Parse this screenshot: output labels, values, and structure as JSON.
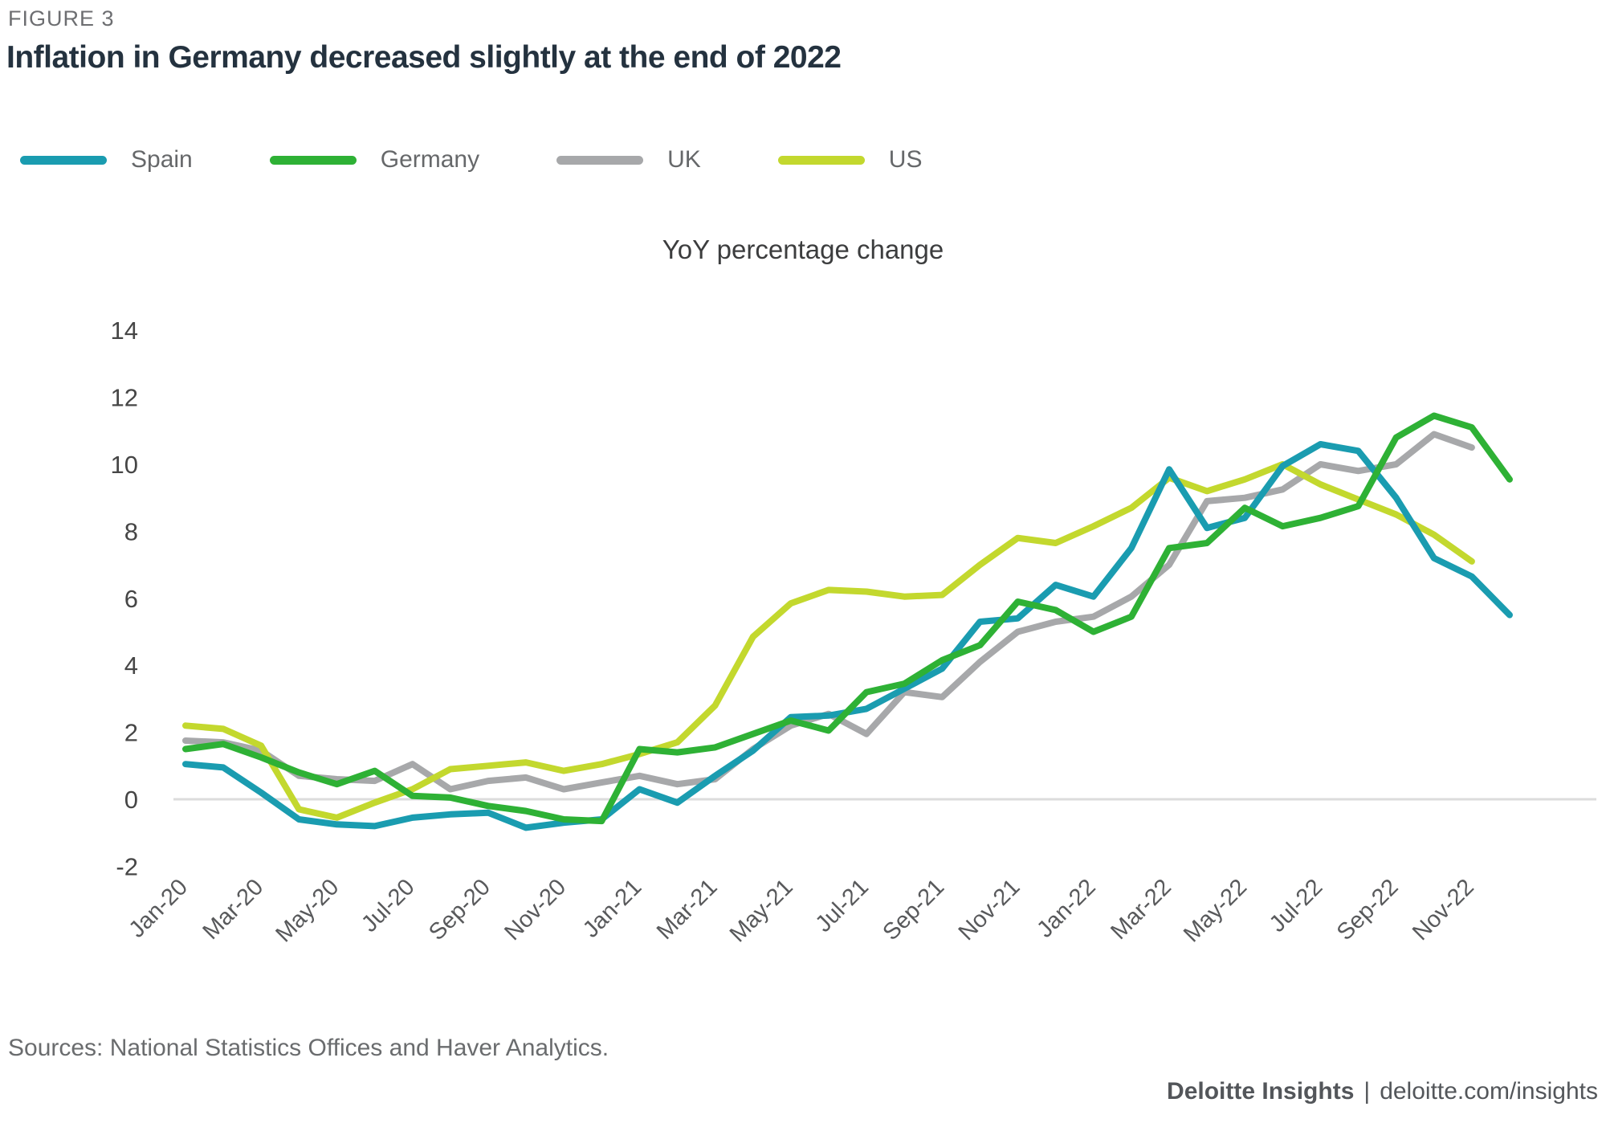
{
  "figure_label": "FIGURE 3",
  "title": "Inflation in Germany decreased slightly at the end of 2022",
  "subtitle": "YoY percentage change",
  "sources": "Sources: National Statistics Offices and Haver Analytics.",
  "footer": {
    "brand": "Deloitte Insights",
    "separator": "|",
    "link": "deloitte.com/insights"
  },
  "colors": {
    "spain": "#1a9cb0",
    "germany": "#2eb135",
    "uk": "#a7a8aa",
    "us": "#c3d82e",
    "zero_gridline": "#dcdcdc",
    "axis_text": "#58595b",
    "title_text": "#24323f"
  },
  "chart_data": {
    "type": "line",
    "title": "Inflation in Germany decreased slightly at the end of 2022",
    "xlabel": "",
    "ylabel": "YoY percentage change",
    "ylim": [
      -2,
      14
    ],
    "y_ticks": [
      14,
      12,
      10,
      8,
      6,
      4,
      2,
      0,
      -2
    ],
    "grid": "zero-baseline-only",
    "legend_position": "top-left",
    "x": [
      "Jan-20",
      "Feb-20",
      "Mar-20",
      "Apr-20",
      "May-20",
      "Jun-20",
      "Jul-20",
      "Aug-20",
      "Sep-20",
      "Oct-20",
      "Nov-20",
      "Dec-20",
      "Jan-21",
      "Feb-21",
      "Mar-21",
      "Apr-21",
      "May-21",
      "Jun-21",
      "Jul-21",
      "Aug-21",
      "Sep-21",
      "Oct-21",
      "Nov-21",
      "Dec-21",
      "Jan-22",
      "Feb-22",
      "Mar-22",
      "Apr-22",
      "May-22",
      "Jun-22",
      "Jul-22",
      "Aug-22",
      "Sep-22",
      "Oct-22",
      "Nov-22",
      "Dec-22"
    ],
    "x_tick_labels": [
      "Jan-20",
      "Mar-20",
      "May-20",
      "Jul-20",
      "Sep-20",
      "Nov-20",
      "Jan-21",
      "Mar-21",
      "May-21",
      "Jul-21",
      "Sep-21",
      "Nov-21",
      "Jan-22",
      "Mar-22",
      "May-22",
      "Jul-22",
      "Sep-22",
      "Nov-22"
    ],
    "series": [
      {
        "name": "Spain",
        "color": "#1a9cb0",
        "values": [
          1.05,
          0.95,
          0.2,
          -0.6,
          -0.75,
          -0.8,
          -0.55,
          -0.45,
          -0.4,
          -0.85,
          -0.7,
          -0.6,
          0.3,
          -0.1,
          0.7,
          1.45,
          2.45,
          2.5,
          2.7,
          3.3,
          3.9,
          5.3,
          5.4,
          6.4,
          6.05,
          7.5,
          9.85,
          8.1,
          8.4,
          9.95,
          10.6,
          10.4,
          9.0,
          7.2,
          6.65,
          5.5
        ]
      },
      {
        "name": "Germany",
        "color": "#2eb135",
        "values": [
          1.5,
          1.65,
          1.25,
          0.8,
          0.45,
          0.85,
          0.1,
          0.05,
          -0.2,
          -0.35,
          -0.6,
          -0.65,
          1.5,
          1.4,
          1.55,
          1.95,
          2.35,
          2.05,
          3.2,
          3.45,
          4.15,
          4.6,
          5.9,
          5.65,
          5.0,
          5.45,
          7.5,
          7.65,
          8.7,
          8.15,
          8.4,
          8.75,
          10.8,
          11.45,
          11.1,
          9.55
        ]
      },
      {
        "name": "UK",
        "color": "#a7a8aa",
        "values": [
          1.75,
          1.7,
          1.45,
          0.7,
          0.6,
          0.55,
          1.05,
          0.3,
          0.55,
          0.65,
          0.3,
          0.5,
          0.7,
          0.45,
          0.6,
          1.5,
          2.2,
          2.55,
          1.95,
          3.2,
          3.05,
          4.1,
          5.0,
          5.3,
          5.45,
          6.05,
          7.0,
          8.9,
          9.0,
          9.25,
          10.0,
          9.8,
          10.0,
          10.9,
          10.5,
          null
        ]
      },
      {
        "name": "US",
        "color": "#c3d82e",
        "values": [
          2.2,
          2.1,
          1.6,
          -0.3,
          -0.55,
          -0.1,
          0.3,
          0.9,
          1.0,
          1.1,
          0.85,
          1.05,
          1.35,
          1.7,
          2.8,
          4.85,
          5.85,
          6.25,
          6.2,
          6.05,
          6.1,
          7.0,
          7.8,
          7.65,
          8.15,
          8.7,
          9.6,
          9.2,
          9.55,
          10.0,
          9.4,
          8.95,
          8.5,
          7.9,
          7.1,
          null
        ]
      }
    ]
  }
}
